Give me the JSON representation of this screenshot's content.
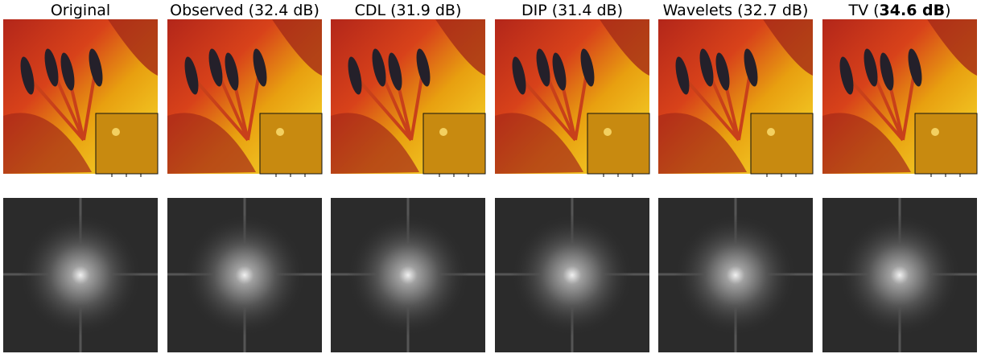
{
  "columns": [
    {
      "title": "Original"
    },
    {
      "title": "Observed (32.4 dB)"
    },
    {
      "title": "CDL (31.9 dB)"
    },
    {
      "title": "DIP (31.4 dB)"
    },
    {
      "title": "Wavelets (32.7 dB)"
    },
    {
      "title_prefix": "TV (",
      "title_bold": "34.6 dB",
      "title_suffix": ")"
    }
  ]
}
